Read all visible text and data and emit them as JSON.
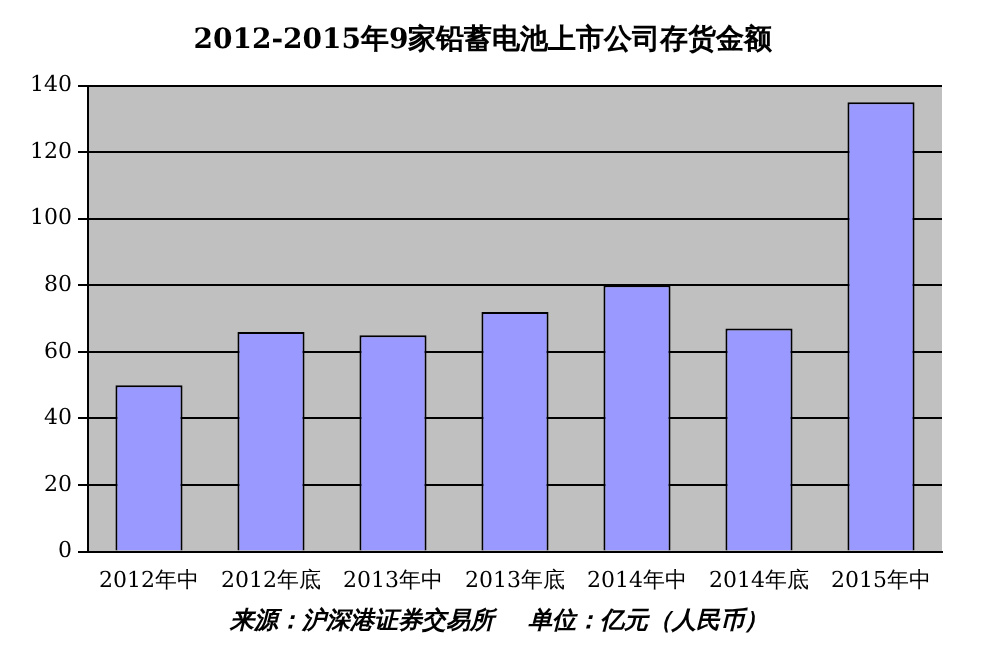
{
  "chart_data": {
    "type": "bar",
    "title": "2012-2015年9家铅蓄电池上市公司存货金额",
    "categories": [
      "2012年中",
      "2012年底",
      "2013年中",
      "2013年底",
      "2014年中",
      "2014年底",
      "2015年中"
    ],
    "values": [
      50,
      66,
      65,
      72,
      80,
      67,
      135
    ],
    "color": "#9999ff",
    "ylim": [
      0,
      140
    ],
    "yticks": [
      0,
      20,
      40,
      60,
      80,
      100,
      120,
      140
    ],
    "grid": "y",
    "legend": false,
    "annotations": [
      "来源：沪深港证券交易所    单位：亿元（人民币）"
    ]
  }
}
